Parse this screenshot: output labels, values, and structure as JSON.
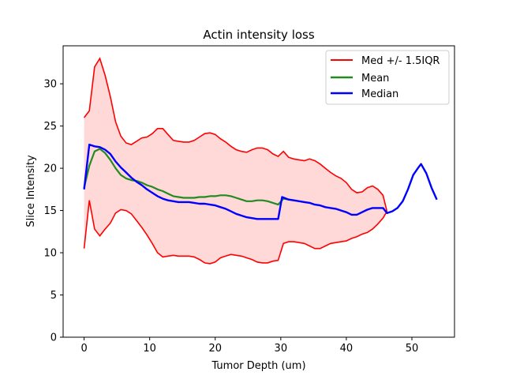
{
  "chart_data": {
    "type": "line",
    "title": "Actin intensity loss",
    "xlabel": "Tumor Depth (um)",
    "ylabel": "Slice Intensity",
    "xlim": [
      -3.2,
      56.5
    ],
    "ylim": [
      0,
      34.5
    ],
    "xticks": [
      0,
      10,
      20,
      30,
      40,
      50
    ],
    "yticks": [
      0,
      5,
      10,
      15,
      20,
      25,
      30
    ],
    "legend_position": "top-right",
    "grid": false,
    "colors": {
      "band_line": "#ff0000",
      "band_fill": "#ffd8d8",
      "mean": "#228b22",
      "median": "#0000ff"
    },
    "legend": [
      {
        "label": "Med +/- 1.5IQR",
        "color": "#ff0000"
      },
      {
        "label": "Mean",
        "color": "#228b22"
      },
      {
        "label": "Median",
        "color": "#0000ff"
      }
    ],
    "series": [
      {
        "name": "Med +/- 1.5IQR",
        "upper": [
          [
            0,
            26
          ],
          [
            0.8,
            26.8
          ],
          [
            1.6,
            32
          ],
          [
            2.4,
            33
          ],
          [
            3.2,
            31
          ],
          [
            4,
            28.5
          ],
          [
            4.8,
            25.5
          ],
          [
            5.6,
            23.8
          ],
          [
            6.4,
            23
          ],
          [
            7.2,
            22.8
          ],
          [
            8,
            23.2
          ],
          [
            8.8,
            23.6
          ],
          [
            9.6,
            23.7
          ],
          [
            10.4,
            24.1
          ],
          [
            11.2,
            24.7
          ],
          [
            12,
            24.7
          ],
          [
            12.8,
            24
          ],
          [
            13.6,
            23.3
          ],
          [
            14.4,
            23.2
          ],
          [
            15.2,
            23.1
          ],
          [
            16,
            23.1
          ],
          [
            16.8,
            23.3
          ],
          [
            17.6,
            23.7
          ],
          [
            18.4,
            24.1
          ],
          [
            19.2,
            24.2
          ],
          [
            20,
            24
          ],
          [
            20.8,
            23.5
          ],
          [
            21.6,
            23.1
          ],
          [
            22.4,
            22.6
          ],
          [
            23.2,
            22.2
          ],
          [
            24,
            22
          ],
          [
            24.8,
            21.9
          ],
          [
            25.6,
            22.2
          ],
          [
            26.4,
            22.4
          ],
          [
            27.2,
            22.4
          ],
          [
            28,
            22.2
          ],
          [
            28.8,
            21.7
          ],
          [
            29.6,
            21.4
          ],
          [
            30.4,
            22
          ],
          [
            31.2,
            21.3
          ],
          [
            32,
            21.1
          ],
          [
            32.8,
            21
          ],
          [
            33.6,
            20.9
          ],
          [
            34.4,
            21.1
          ],
          [
            35.2,
            20.9
          ],
          [
            36,
            20.5
          ],
          [
            36.8,
            20
          ],
          [
            37.6,
            19.5
          ],
          [
            38.4,
            19.1
          ],
          [
            39.2,
            18.8
          ],
          [
            40,
            18.3
          ],
          [
            40.8,
            17.5
          ],
          [
            41.6,
            17.1
          ],
          [
            42.4,
            17.2
          ],
          [
            43.2,
            17.7
          ],
          [
            44,
            17.9
          ],
          [
            44.8,
            17.5
          ],
          [
            45.6,
            16.8
          ],
          [
            46.2,
            14.9
          ]
        ],
        "lower": [
          [
            0,
            10.5
          ],
          [
            0.8,
            16.2
          ],
          [
            1.6,
            12.8
          ],
          [
            2.4,
            12
          ],
          [
            3.2,
            12.8
          ],
          [
            4,
            13.5
          ],
          [
            4.8,
            14.7
          ],
          [
            5.6,
            15.1
          ],
          [
            6.4,
            15
          ],
          [
            7.2,
            14.6
          ],
          [
            8,
            13.8
          ],
          [
            8.8,
            13
          ],
          [
            9.6,
            12.1
          ],
          [
            10.4,
            11.1
          ],
          [
            11.2,
            10
          ],
          [
            12,
            9.5
          ],
          [
            12.8,
            9.6
          ],
          [
            13.6,
            9.7
          ],
          [
            14.4,
            9.6
          ],
          [
            15.2,
            9.6
          ],
          [
            16,
            9.6
          ],
          [
            16.8,
            9.5
          ],
          [
            17.6,
            9.2
          ],
          [
            18.4,
            8.8
          ],
          [
            19.2,
            8.7
          ],
          [
            20,
            8.9
          ],
          [
            20.8,
            9.4
          ],
          [
            21.6,
            9.6
          ],
          [
            22.4,
            9.8
          ],
          [
            23.2,
            9.7
          ],
          [
            24,
            9.6
          ],
          [
            24.8,
            9.4
          ],
          [
            25.6,
            9.2
          ],
          [
            26.4,
            8.9
          ],
          [
            27.2,
            8.8
          ],
          [
            28,
            8.8
          ],
          [
            28.8,
            9
          ],
          [
            29.6,
            9.1
          ],
          [
            30.4,
            11.1
          ],
          [
            31.2,
            11.3
          ],
          [
            32,
            11.3
          ],
          [
            32.8,
            11.2
          ],
          [
            33.6,
            11.1
          ],
          [
            34.4,
            10.8
          ],
          [
            35.2,
            10.5
          ],
          [
            36,
            10.5
          ],
          [
            36.8,
            10.8
          ],
          [
            37.6,
            11.1
          ],
          [
            38.4,
            11.2
          ],
          [
            39.2,
            11.3
          ],
          [
            40,
            11.4
          ],
          [
            40.8,
            11.7
          ],
          [
            41.6,
            11.9
          ],
          [
            42.4,
            12.2
          ],
          [
            43.2,
            12.4
          ],
          [
            44,
            12.8
          ],
          [
            44.8,
            13.4
          ],
          [
            45.6,
            14.1
          ],
          [
            46.2,
            14.9
          ]
        ]
      },
      {
        "name": "Mean",
        "values": [
          [
            0,
            17.7
          ],
          [
            0.8,
            20.3
          ],
          [
            1.6,
            22
          ],
          [
            2.4,
            22.3
          ],
          [
            3.2,
            21.8
          ],
          [
            4,
            21
          ],
          [
            4.8,
            20
          ],
          [
            5.6,
            19.2
          ],
          [
            6.4,
            18.8
          ],
          [
            7.2,
            18.6
          ],
          [
            8,
            18.5
          ],
          [
            8.8,
            18.3
          ],
          [
            9.6,
            18
          ],
          [
            10.4,
            17.8
          ],
          [
            11.2,
            17.5
          ],
          [
            12,
            17.3
          ],
          [
            12.8,
            17
          ],
          [
            13.6,
            16.7
          ],
          [
            14.4,
            16.6
          ],
          [
            15.2,
            16.5
          ],
          [
            16,
            16.5
          ],
          [
            16.8,
            16.5
          ],
          [
            17.6,
            16.6
          ],
          [
            18.4,
            16.6
          ],
          [
            19.2,
            16.7
          ],
          [
            20,
            16.7
          ],
          [
            20.8,
            16.8
          ],
          [
            21.6,
            16.8
          ],
          [
            22.4,
            16.7
          ],
          [
            23.2,
            16.5
          ],
          [
            24,
            16.3
          ],
          [
            24.8,
            16.1
          ],
          [
            25.6,
            16.1
          ],
          [
            26.4,
            16.2
          ],
          [
            27.2,
            16.2
          ],
          [
            28,
            16.1
          ],
          [
            28.8,
            15.9
          ],
          [
            29.6,
            15.7
          ],
          [
            30.4,
            16.4
          ],
          [
            31.2,
            16.3
          ],
          [
            32,
            16.2
          ]
        ]
      },
      {
        "name": "Median",
        "values": [
          [
            0,
            17.5
          ],
          [
            0.8,
            22.8
          ],
          [
            1.6,
            22.6
          ],
          [
            2.4,
            22.5
          ],
          [
            3.2,
            22.2
          ],
          [
            4,
            21.7
          ],
          [
            4.8,
            20.8
          ],
          [
            5.6,
            20.1
          ],
          [
            6.4,
            19.5
          ],
          [
            7.2,
            18.9
          ],
          [
            8,
            18.4
          ],
          [
            8.8,
            18
          ],
          [
            9.6,
            17.5
          ],
          [
            10.4,
            17.1
          ],
          [
            11.2,
            16.7
          ],
          [
            12,
            16.4
          ],
          [
            12.8,
            16.2
          ],
          [
            13.6,
            16.1
          ],
          [
            14.4,
            16
          ],
          [
            15.2,
            16
          ],
          [
            16,
            16
          ],
          [
            16.8,
            15.9
          ],
          [
            17.6,
            15.8
          ],
          [
            18.4,
            15.8
          ],
          [
            19.2,
            15.7
          ],
          [
            20,
            15.6
          ],
          [
            20.8,
            15.4
          ],
          [
            21.6,
            15.2
          ],
          [
            22.4,
            14.9
          ],
          [
            23.2,
            14.6
          ],
          [
            24,
            14.4
          ],
          [
            24.8,
            14.2
          ],
          [
            25.6,
            14.1
          ],
          [
            26.4,
            14
          ],
          [
            27.2,
            14
          ],
          [
            28,
            14
          ],
          [
            28.8,
            14
          ],
          [
            29.6,
            14
          ],
          [
            30.2,
            16.6
          ],
          [
            31.2,
            16.3
          ],
          [
            32,
            16.2
          ],
          [
            32.8,
            16.1
          ],
          [
            33.6,
            16
          ],
          [
            34.4,
            15.9
          ],
          [
            35.2,
            15.7
          ],
          [
            36,
            15.6
          ],
          [
            36.8,
            15.4
          ],
          [
            37.6,
            15.3
          ],
          [
            38.4,
            15.2
          ],
          [
            39.2,
            15
          ],
          [
            40,
            14.8
          ],
          [
            40.8,
            14.5
          ],
          [
            41.6,
            14.5
          ],
          [
            42.4,
            14.8
          ],
          [
            43.2,
            15.1
          ],
          [
            44,
            15.3
          ],
          [
            44.8,
            15.3
          ],
          [
            45.6,
            15.3
          ],
          [
            46.2,
            14.7
          ],
          [
            47,
            14.9
          ],
          [
            47.8,
            15.3
          ],
          [
            48.6,
            16.1
          ],
          [
            49.4,
            17.5
          ],
          [
            50.2,
            19.2
          ],
          [
            51,
            20.1
          ],
          [
            51.4,
            20.5
          ],
          [
            52.2,
            19.4
          ],
          [
            53,
            17.7
          ],
          [
            53.8,
            16.3
          ]
        ]
      }
    ]
  }
}
